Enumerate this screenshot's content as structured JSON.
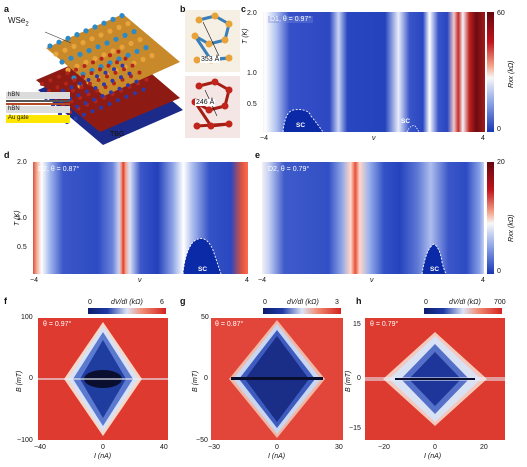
{
  "figure": {
    "panel_labels": [
      "a",
      "b",
      "c",
      "d",
      "e",
      "f",
      "g",
      "h"
    ],
    "panel_a": {
      "material_top": "WSe",
      "material_top_sub": "2",
      "stack": [
        "hBN",
        "hBN",
        "Au gate"
      ],
      "tbg_label": "TBG"
    },
    "panel_b": {
      "distance_top": "353 Å",
      "distance_bottom": "246 Å"
    },
    "panel_c": {
      "title": "D1, θ = 0.97°",
      "ylabel": "T (K)",
      "yticks": [
        "2.0",
        "1.0",
        "0.5"
      ],
      "xticks": [
        "−4",
        "ν",
        "4"
      ],
      "sc_labels": [
        "SC",
        "SC"
      ],
      "cbar_label": "Rxx (kΩ)",
      "cbar_ticks": [
        "60",
        "0"
      ]
    },
    "panel_d": {
      "title": "D2, θ = 0.87°",
      "ylabel": "T (K)",
      "yticks": [
        "2.0",
        "1.0",
        "0.5"
      ],
      "xticks": [
        "−4",
        "ν",
        "4"
      ],
      "sc_label": "SC"
    },
    "panel_e": {
      "title": "D2, θ = 0.79°",
      "xticks": [
        "−4",
        "ν",
        "4"
      ],
      "sc_label": "SC",
      "cbar_label": "Rxx (kΩ)",
      "cbar_ticks": [
        "20",
        "0"
      ]
    },
    "panel_f": {
      "title": "θ = 0.97°",
      "ylabel": "B (mT)",
      "xlabel": "I (nA)",
      "yticks": [
        "100",
        "0",
        "−100"
      ],
      "xticks": [
        "−40",
        "0",
        "40"
      ],
      "cbar_label": "dV/dI (kΩ)",
      "cbar_ticks": [
        "0",
        "6"
      ]
    },
    "panel_g": {
      "title": "θ = 0.87°",
      "ylabel": "B (mT)",
      "xlabel": "I (nA)",
      "yticks": [
        "50",
        "0",
        "−50"
      ],
      "xticks": [
        "−30",
        "0",
        "30"
      ],
      "cbar_label": "dV/dI (kΩ)",
      "cbar_ticks": [
        "0",
        "3"
      ]
    },
    "panel_h": {
      "title": "θ = 0.79°",
      "ylabel": "B (mT)",
      "xlabel": "I (nA)",
      "yticks": [
        "15",
        "0",
        "−15"
      ],
      "xticks": [
        "−20",
        "0",
        "20"
      ],
      "cbar_label": "dV/dI (kΩ)",
      "cbar_ticks": [
        "0",
        "700"
      ]
    },
    "colors": {
      "blue": "#1f3fbf",
      "red": "#c0141c",
      "light": "#f2f4fb",
      "pale": "#9fb2ea"
    }
  }
}
